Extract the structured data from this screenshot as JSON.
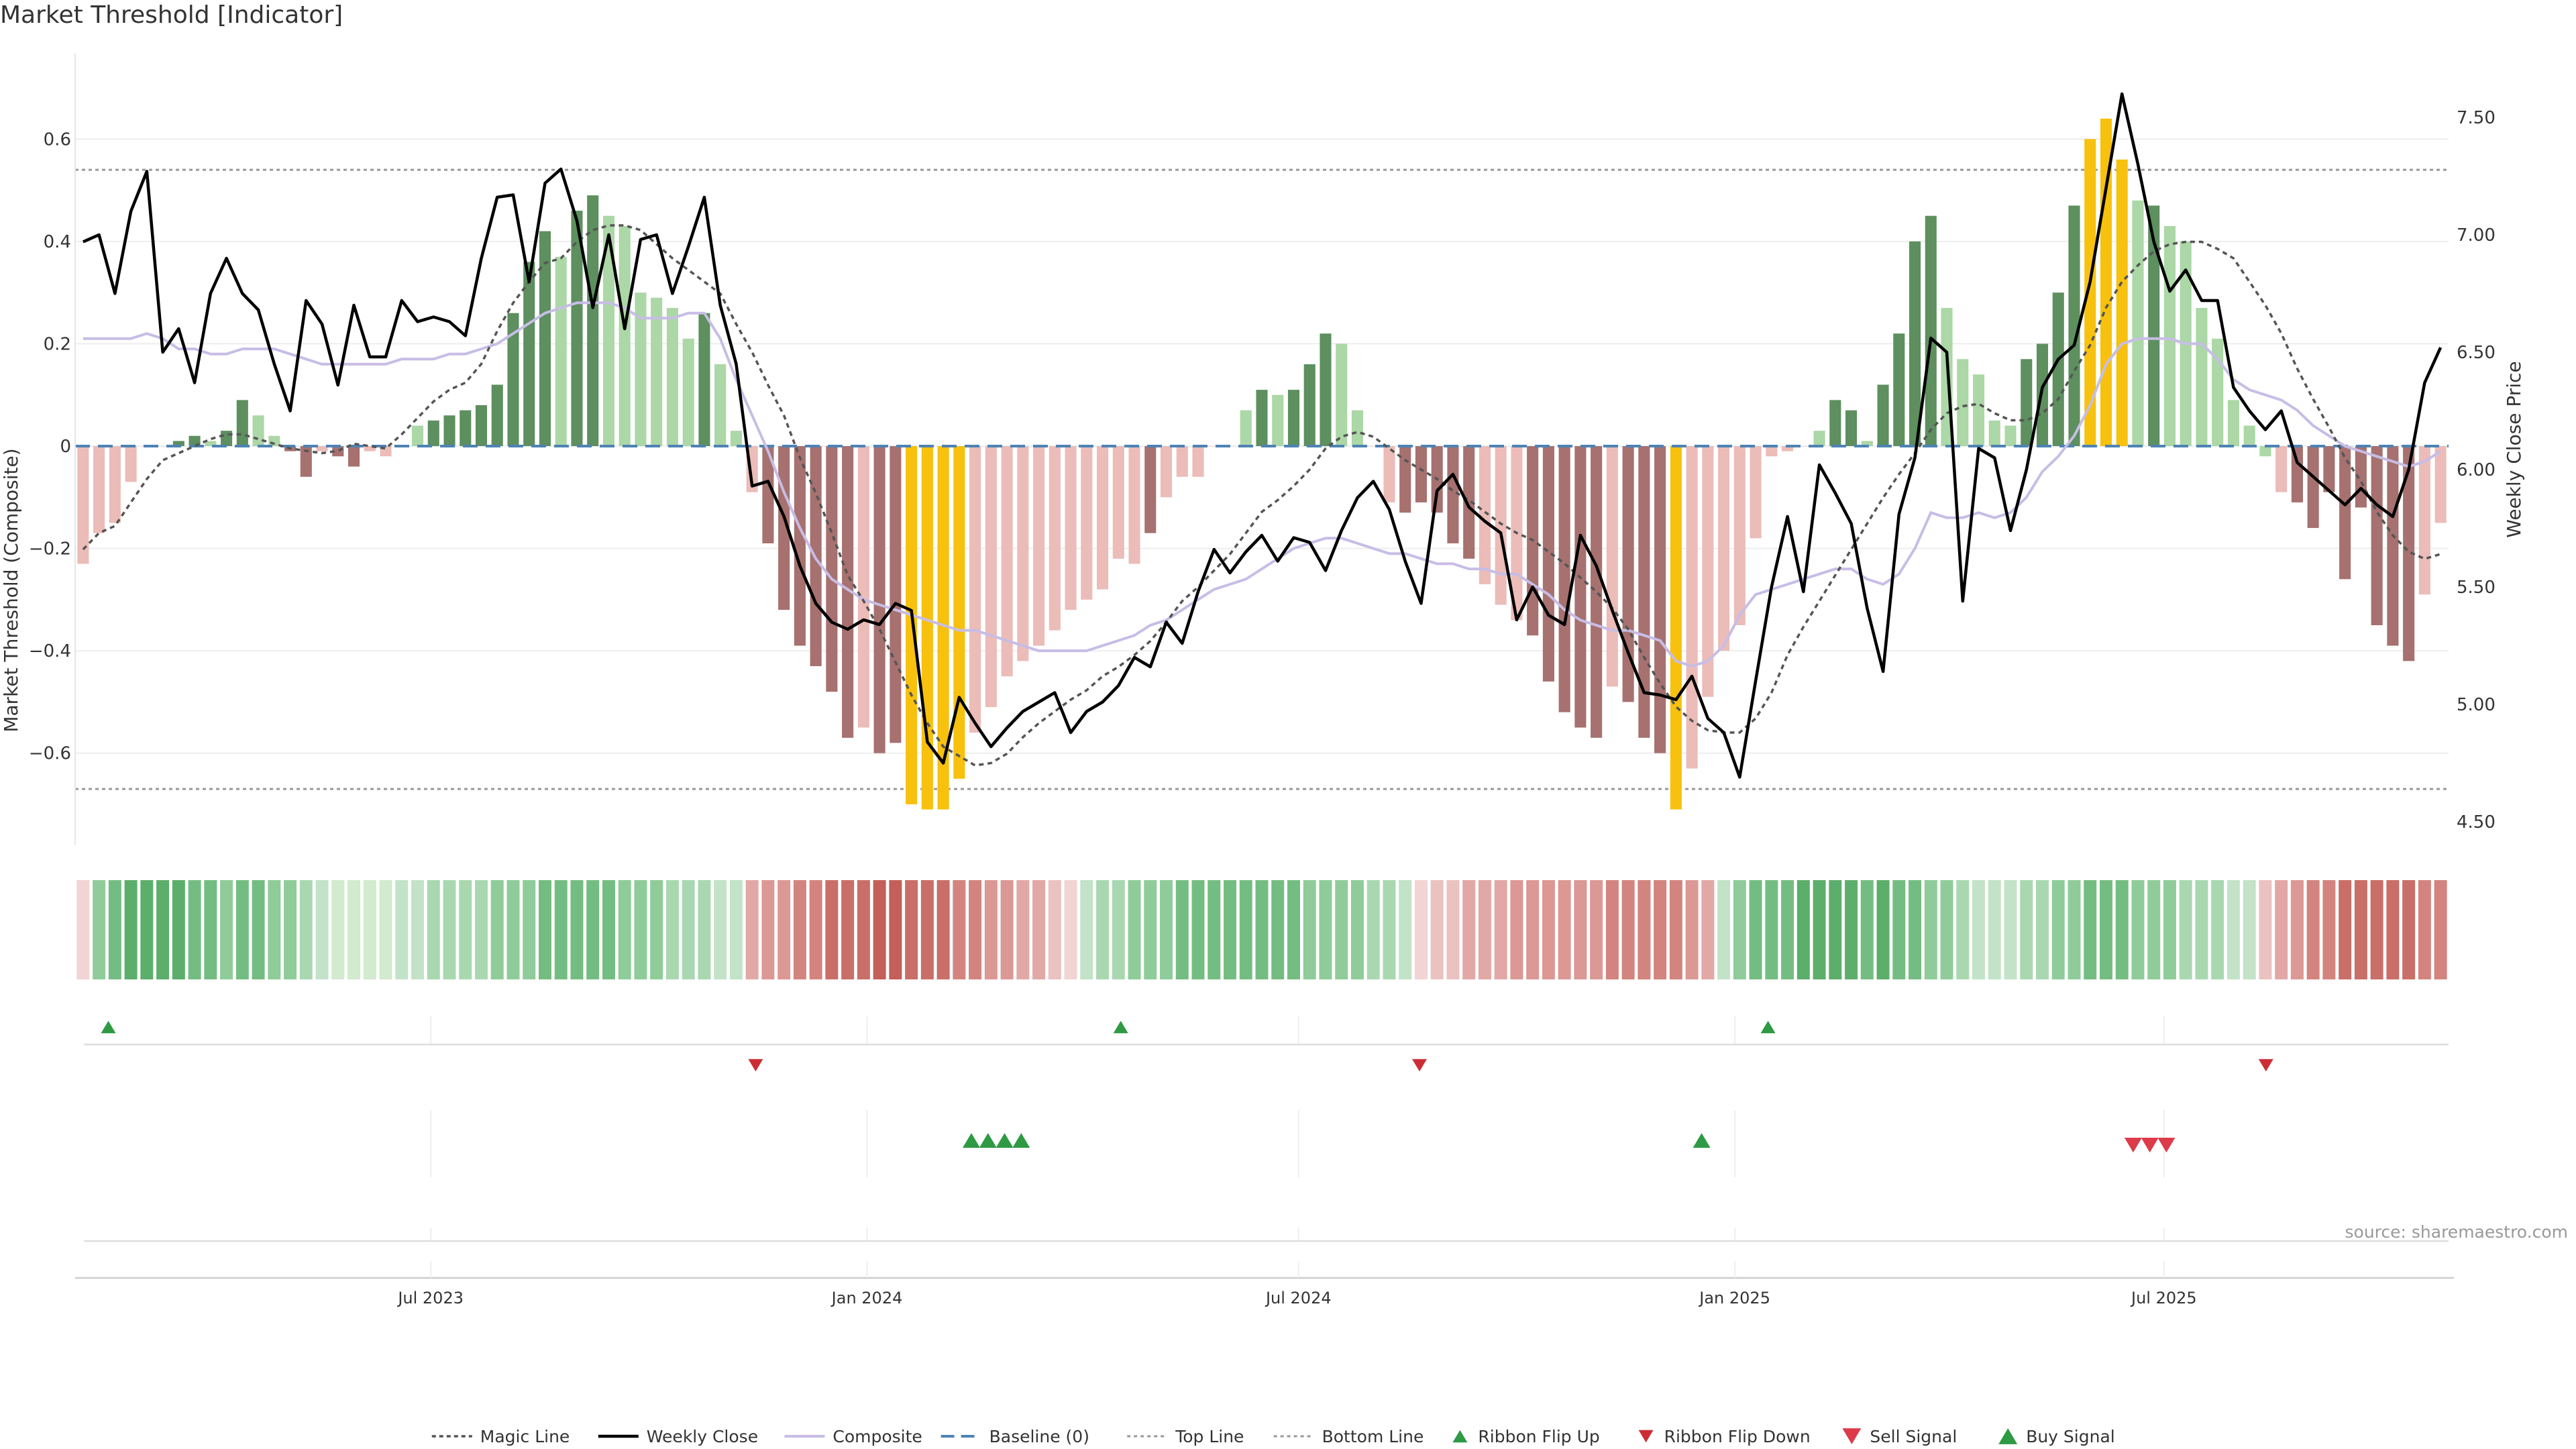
{
  "chart_data": {
    "type": "bar",
    "title": "Market Threshold [Indicator]",
    "ylabel": "Market Threshold (Composite)",
    "y2label": "Weekly Close Price",
    "ylim": [
      -0.78,
      0.78
    ],
    "y2lim": [
      4.4,
      7.8
    ],
    "yticks": [
      -0.6,
      -0.4,
      -0.2,
      0,
      0.2,
      0.4,
      0.6
    ],
    "ytick_labels": [
      "−0.6",
      "−0.4",
      "−0.2",
      "0",
      "0.2",
      "0.4",
      "0.6"
    ],
    "y2ticks": [
      4.5,
      5.0,
      5.5,
      6.0,
      6.5,
      7.0,
      7.5
    ],
    "y2tick_labels": [
      "4.50",
      "5.00",
      "5.50",
      "6.00",
      "6.50",
      "7.00",
      "7.50"
    ],
    "x_start": "2023-02-01",
    "x_end": "2025-10-29",
    "x_ticks": [
      {
        "date": "2023-07-01",
        "label": "Jul 2023"
      },
      {
        "date": "2024-01-01",
        "label": "Jan 2024"
      },
      {
        "date": "2024-07-01",
        "label": "Jul 2024"
      },
      {
        "date": "2025-01-01",
        "label": "Jan 2025"
      },
      {
        "date": "2025-07-01",
        "label": "Jul 2025"
      }
    ],
    "top_line": 0.54,
    "bottom_line": -0.67,
    "baseline": 0,
    "composite_bars": [
      -0.23,
      -0.17,
      -0.15,
      -0.07,
      0,
      0,
      0.01,
      0.02,
      0.01,
      0.03,
      0.09,
      0.06,
      0.02,
      -0.01,
      -0.06,
      -0.01,
      -0.02,
      -0.04,
      -0.01,
      -0.02,
      0,
      0.04,
      0.05,
      0.06,
      0.07,
      0.08,
      0.12,
      0.26,
      0.36,
      0.42,
      0.37,
      0.46,
      0.49,
      0.45,
      0.43,
      0.3,
      0.29,
      0.27,
      0.21,
      0.26,
      0.16,
      0.03,
      -0.09,
      -0.19,
      -0.32,
      -0.39,
      -0.43,
      -0.48,
      -0.57,
      -0.55,
      -0.6,
      -0.58,
      -0.7,
      -0.71,
      -0.71,
      -0.65,
      -0.56,
      -0.51,
      -0.45,
      -0.42,
      -0.39,
      -0.36,
      -0.32,
      -0.3,
      -0.28,
      -0.22,
      -0.23,
      -0.17,
      -0.1,
      -0.06,
      -0.06,
      0,
      0,
      0.07,
      0.11,
      0.1,
      0.11,
      0.16,
      0.22,
      0.2,
      0.07,
      0,
      -0.11,
      -0.13,
      -0.11,
      -0.13,
      -0.19,
      -0.22,
      -0.27,
      -0.31,
      -0.34,
      -0.37,
      -0.46,
      -0.52,
      -0.55,
      -0.57,
      -0.47,
      -0.5,
      -0.57,
      -0.6,
      -0.71,
      -0.63,
      -0.49,
      -0.4,
      -0.35,
      -0.18,
      -0.02,
      -0.01,
      0,
      0.03,
      0.09,
      0.07,
      0.01,
      0.12,
      0.22,
      0.4,
      0.45,
      0.27,
      0.17,
      0.14,
      0.05,
      0.04,
      0.17,
      0.2,
      0.3,
      0.47,
      0.6,
      0.64,
      0.56,
      0.48,
      0.47,
      0.43,
      0.4,
      0.27,
      0.21,
      0.09,
      0.04,
      -0.02,
      -0.09,
      -0.11,
      -0.16,
      -0.09,
      -0.26,
      -0.12,
      -0.35,
      -0.39,
      -0.42,
      -0.29,
      -0.15
    ],
    "bar_categories": [
      "light-red",
      "light-red",
      "light-red",
      "light-red",
      "neutral",
      "neutral",
      "dark-green",
      "dark-green",
      "light-green",
      "dark-green",
      "dark-green",
      "light-green",
      "light-green",
      "dark-red",
      "dark-red",
      "light-red",
      "dark-red",
      "dark-red",
      "light-red",
      "light-red",
      "neutral",
      "light-green",
      "dark-green",
      "dark-green",
      "dark-green",
      "dark-green",
      "dark-green",
      "dark-green",
      "dark-green",
      "dark-green",
      "light-green",
      "dark-green",
      "dark-green",
      "light-green",
      "light-green",
      "light-green",
      "light-green",
      "light-green",
      "light-green",
      "dark-green",
      "light-green",
      "light-green",
      "light-red",
      "dark-red",
      "dark-red",
      "dark-red",
      "dark-red",
      "dark-red",
      "dark-red",
      "light-red",
      "dark-red",
      "dark-red",
      "gold",
      "gold",
      "gold",
      "gold",
      "light-red",
      "light-red",
      "light-red",
      "light-red",
      "light-red",
      "light-red",
      "light-red",
      "light-red",
      "light-red",
      "light-red",
      "light-red",
      "dark-red",
      "light-red",
      "light-red",
      "light-red",
      "neutral",
      "neutral",
      "light-green",
      "dark-green",
      "light-green",
      "dark-green",
      "dark-green",
      "dark-green",
      "light-green",
      "light-green",
      "neutral",
      "light-red",
      "dark-red",
      "dark-red",
      "dark-red",
      "dark-red",
      "dark-red",
      "light-red",
      "light-red",
      "light-red",
      "dark-red",
      "dark-red",
      "dark-red",
      "dark-red",
      "dark-red",
      "light-red",
      "dark-red",
      "dark-red",
      "dark-red",
      "gold",
      "light-red",
      "light-red",
      "light-red",
      "light-red",
      "light-red",
      "light-red",
      "light-red",
      "neutral",
      "light-green",
      "dark-green",
      "dark-green",
      "light-green",
      "dark-green",
      "dark-green",
      "dark-green",
      "dark-green",
      "light-green",
      "light-green",
      "light-green",
      "light-green",
      "light-green",
      "dark-green",
      "dark-green",
      "dark-green",
      "dark-green",
      "gold",
      "gold",
      "gold",
      "light-green",
      "dark-green",
      "light-green",
      "light-green",
      "light-green",
      "light-green",
      "light-green",
      "light-green",
      "light-green",
      "light-red",
      "dark-red",
      "dark-red",
      "dark-red",
      "dark-red",
      "dark-red",
      "dark-red",
      "dark-red",
      "dark-red",
      "light-red",
      "light-red"
    ],
    "weekly_close": [
      6.97,
      7.0,
      6.75,
      7.1,
      7.27,
      6.5,
      6.6,
      6.37,
      6.75,
      6.9,
      6.75,
      6.68,
      6.45,
      6.25,
      6.72,
      6.62,
      6.36,
      6.7,
      6.48,
      6.48,
      6.72,
      6.63,
      6.65,
      6.63,
      6.57,
      6.9,
      7.16,
      7.17,
      6.8,
      7.22,
      7.28,
      7.06,
      6.69,
      7.0,
      6.6,
      6.98,
      7.0,
      6.75,
      6.95,
      7.16,
      6.7,
      6.45,
      5.93,
      5.95,
      5.8,
      5.59,
      5.43,
      5.35,
      5.32,
      5.36,
      5.34,
      5.43,
      5.4,
      4.84,
      4.75,
      5.03,
      4.92,
      4.82,
      4.9,
      4.97,
      5.01,
      5.05,
      4.88,
      4.97,
      5.01,
      5.08,
      5.2,
      5.16,
      5.35,
      5.26,
      5.48,
      5.66,
      5.56,
      5.65,
      5.72,
      5.61,
      5.71,
      5.69,
      5.57,
      5.74,
      5.88,
      5.95,
      5.83,
      5.61,
      5.43,
      5.91,
      5.98,
      5.84,
      5.78,
      5.73,
      5.36,
      5.5,
      5.38,
      5.34,
      5.72,
      5.59,
      5.4,
      5.22,
      5.05,
      5.04,
      5.02,
      5.12,
      4.94,
      4.88,
      4.69,
      5.1,
      5.5,
      5.8,
      5.48,
      6.02,
      5.9,
      5.77,
      5.41,
      5.14,
      5.81,
      6.05,
      6.56,
      6.5,
      5.44,
      6.09,
      6.05,
      5.74,
      6.0,
      6.35,
      6.47,
      6.53,
      6.8,
      7.2,
      7.6,
      7.3,
      6.97,
      6.76,
      6.85,
      6.72,
      6.72,
      6.35,
      6.25,
      6.17,
      6.25,
      6.03,
      5.97,
      5.91,
      5.85,
      5.92,
      5.85,
      5.8,
      6.0,
      6.37,
      6.52
    ],
    "magic_line": [
      5.66,
      5.73,
      5.76,
      5.86,
      5.96,
      6.04,
      6.07,
      6.1,
      6.13,
      6.15,
      6.15,
      6.13,
      6.11,
      6.09,
      6.08,
      6.07,
      6.08,
      6.11,
      6.1,
      6.09,
      6.15,
      6.22,
      6.29,
      6.34,
      6.37,
      6.45,
      6.59,
      6.71,
      6.8,
      6.88,
      6.9,
      6.97,
      7.02,
      7.04,
      7.04,
      7.02,
      6.96,
      6.9,
      6.85,
      6.8,
      6.75,
      6.62,
      6.5,
      6.36,
      6.23,
      6.05,
      5.9,
      5.73,
      5.55,
      5.44,
      5.32,
      5.18,
      5.04,
      4.92,
      4.82,
      4.78,
      4.74,
      4.75,
      4.79,
      4.86,
      4.92,
      4.97,
      5.02,
      5.06,
      5.12,
      5.16,
      5.21,
      5.27,
      5.35,
      5.44,
      5.5,
      5.57,
      5.64,
      5.73,
      5.82,
      5.87,
      5.93,
      6.0,
      6.09,
      6.14,
      6.16,
      6.14,
      6.09,
      6.04,
      6.0,
      5.96,
      5.91,
      5.87,
      5.82,
      5.77,
      5.73,
      5.7,
      5.65,
      5.6,
      5.54,
      5.48,
      5.41,
      5.32,
      5.2,
      5.09,
      4.99,
      4.93,
      4.89,
      4.88,
      4.88,
      4.94,
      5.05,
      5.21,
      5.33,
      5.44,
      5.55,
      5.66,
      5.77,
      5.88,
      5.98,
      6.07,
      6.17,
      6.24,
      6.27,
      6.28,
      6.24,
      6.21,
      6.21,
      6.24,
      6.3,
      6.42,
      6.53,
      6.69,
      6.8,
      6.87,
      6.93,
      6.96,
      6.97,
      6.97,
      6.94,
      6.9,
      6.8,
      6.7,
      6.58,
      6.43,
      6.3,
      6.18,
      6.05,
      5.95,
      5.82,
      5.72,
      5.65,
      5.62,
      5.64
    ],
    "composite_line": [
      0.21,
      0.21,
      0.21,
      0.21,
      0.22,
      0.21,
      0.19,
      0.19,
      0.18,
      0.18,
      0.19,
      0.19,
      0.19,
      0.18,
      0.17,
      0.16,
      0.16,
      0.16,
      0.16,
      0.16,
      0.17,
      0.17,
      0.17,
      0.18,
      0.18,
      0.19,
      0.2,
      0.22,
      0.24,
      0.26,
      0.27,
      0.28,
      0.28,
      0.28,
      0.27,
      0.25,
      0.25,
      0.25,
      0.26,
      0.26,
      0.21,
      0.13,
      0.06,
      -0.01,
      -0.09,
      -0.16,
      -0.22,
      -0.26,
      -0.28,
      -0.3,
      -0.31,
      -0.32,
      -0.33,
      -0.34,
      -0.35,
      -0.36,
      -0.36,
      -0.37,
      -0.38,
      -0.39,
      -0.4,
      -0.4,
      -0.4,
      -0.4,
      -0.39,
      -0.38,
      -0.37,
      -0.35,
      -0.34,
      -0.32,
      -0.3,
      -0.28,
      -0.27,
      -0.26,
      -0.24,
      -0.22,
      -0.2,
      -0.19,
      -0.18,
      -0.18,
      -0.19,
      -0.2,
      -0.21,
      -0.21,
      -0.22,
      -0.23,
      -0.23,
      -0.24,
      -0.24,
      -0.25,
      -0.25,
      -0.27,
      -0.29,
      -0.32,
      -0.34,
      -0.35,
      -0.36,
      -0.36,
      -0.37,
      -0.38,
      -0.42,
      -0.43,
      -0.42,
      -0.39,
      -0.33,
      -0.29,
      -0.28,
      -0.27,
      -0.26,
      -0.25,
      -0.24,
      -0.24,
      -0.26,
      -0.27,
      -0.25,
      -0.2,
      -0.13,
      -0.14,
      -0.14,
      -0.13,
      -0.14,
      -0.13,
      -0.1,
      -0.05,
      -0.02,
      0.02,
      0.08,
      0.16,
      0.2,
      0.21,
      0.21,
      0.21,
      0.2,
      0.2,
      0.17,
      0.13,
      0.11,
      0.1,
      0.09,
      0.07,
      0.04,
      0.02,
      0.0,
      -0.01,
      -0.02,
      -0.03,
      -0.04,
      -0.03,
      -0.01
    ],
    "ribbon": [
      "#f1d4d3",
      "#8fcc99",
      "#74bd82",
      "#5cae6b",
      "#5cae6b",
      "#5cae6b",
      "#5cae6b",
      "#74bd82",
      "#74bd82",
      "#8fcc99",
      "#74bd82",
      "#74bd82",
      "#8fcc99",
      "#8fcc99",
      "#a9d8b0",
      "#c2e3c7",
      "#d2eace",
      "#d2eace",
      "#d2eace",
      "#d2eace",
      "#c2e3c7",
      "#c2e3c7",
      "#a9d8b0",
      "#a9d8b0",
      "#a9d8b0",
      "#a9d8b0",
      "#8fcc99",
      "#8fcc99",
      "#8fcc99",
      "#74bd82",
      "#74bd82",
      "#74bd82",
      "#74bd82",
      "#74bd82",
      "#8fcc99",
      "#8fcc99",
      "#8fcc99",
      "#a9d8b0",
      "#a9d8b0",
      "#a9d8b0",
      "#c2e3c7",
      "#c2e3c7",
      "#e2a8a5",
      "#dc9894",
      "#dc9894",
      "#d3847f",
      "#d3847f",
      "#c96e68",
      "#c96e68",
      "#c96e68",
      "#c45f59",
      "#c45f59",
      "#c96e68",
      "#c96e68",
      "#c96e68",
      "#d3847f",
      "#d3847f",
      "#dc9894",
      "#dc9894",
      "#e2a8a5",
      "#e2a8a5",
      "#eac2c0",
      "#f1d4d3",
      "#c2e3c7",
      "#a9d8b0",
      "#a9d8b0",
      "#8fcc99",
      "#8fcc99",
      "#8fcc99",
      "#74bd82",
      "#74bd82",
      "#74bd82",
      "#74bd82",
      "#74bd82",
      "#74bd82",
      "#74bd82",
      "#74bd82",
      "#8fcc99",
      "#8fcc99",
      "#8fcc99",
      "#8fcc99",
      "#a9d8b0",
      "#a9d8b0",
      "#c2e3c7",
      "#f1d4d3",
      "#eac2c0",
      "#eac2c0",
      "#e2a8a5",
      "#e2a8a5",
      "#e2a8a5",
      "#dc9894",
      "#dc9894",
      "#dc9894",
      "#dc9894",
      "#dc9894",
      "#dc9894",
      "#d3847f",
      "#d3847f",
      "#d3847f",
      "#d3847f",
      "#d3847f",
      "#dc9894",
      "#e2a8a5",
      "#c2e3c7",
      "#8fcc99",
      "#74bd82",
      "#74bd82",
      "#74bd82",
      "#5cae6b",
      "#5cae6b",
      "#5cae6b",
      "#5cae6b",
      "#74bd82",
      "#5cae6b",
      "#74bd82",
      "#74bd82",
      "#8fcc99",
      "#8fcc99",
      "#a9d8b0",
      "#c2e3c7",
      "#c2e3c7",
      "#c2e3c7",
      "#a9d8b0",
      "#a9d8b0",
      "#8fcc99",
      "#8fcc99",
      "#74bd82",
      "#74bd82",
      "#74bd82",
      "#8fcc99",
      "#8fcc99",
      "#8fcc99",
      "#a9d8b0",
      "#a9d8b0",
      "#a9d8b0",
      "#c2e3c7",
      "#c2e3c7",
      "#eac2c0",
      "#e2a8a5",
      "#dc9894",
      "#d3847f",
      "#d3847f",
      "#c96e68",
      "#c96e68",
      "#c96e68",
      "#c96e68",
      "#c96e68",
      "#d3847f",
      "#d3847f"
    ],
    "ribbon_flip_up": [
      "2023-02-15",
      "2024-04-17",
      "2025-01-15"
    ],
    "ribbon_flip_down": [
      "2023-11-15",
      "2024-08-21",
      "2025-08-13"
    ],
    "buy_signals": [
      "2024-02-14",
      "2024-02-21",
      "2024-02-28",
      "2024-03-06",
      "2024-12-18"
    ],
    "sell_signals": [
      "2025-06-18",
      "2025-06-25",
      "2025-07-02"
    ],
    "legend": [
      "Magic Line",
      "Weekly Close",
      "Composite",
      "Baseline (0)",
      "Top Line",
      "Bottom Line",
      "Ribbon Flip Up",
      "Ribbon Flip Down",
      "Sell Signal",
      "Buy Signal"
    ],
    "colors": {
      "dark-green": "#5d8f5f",
      "light-green": "#acd7a6",
      "dark-red": "#a6716f",
      "light-red": "#ebbcb8",
      "gold": "#f7c10e",
      "neutral": "#f3dede",
      "weekly_close": "#000000",
      "magic_line": "#555555",
      "composite_line": "#c7bde6",
      "baseline": "#4e83b4",
      "threshold": "#999999",
      "flip_up": "#2e9a44",
      "flip_down": "#cc2d35",
      "sell": "#dd3a4a",
      "buy": "#2e9a44"
    }
  },
  "source": "source: sharemaestro.com"
}
